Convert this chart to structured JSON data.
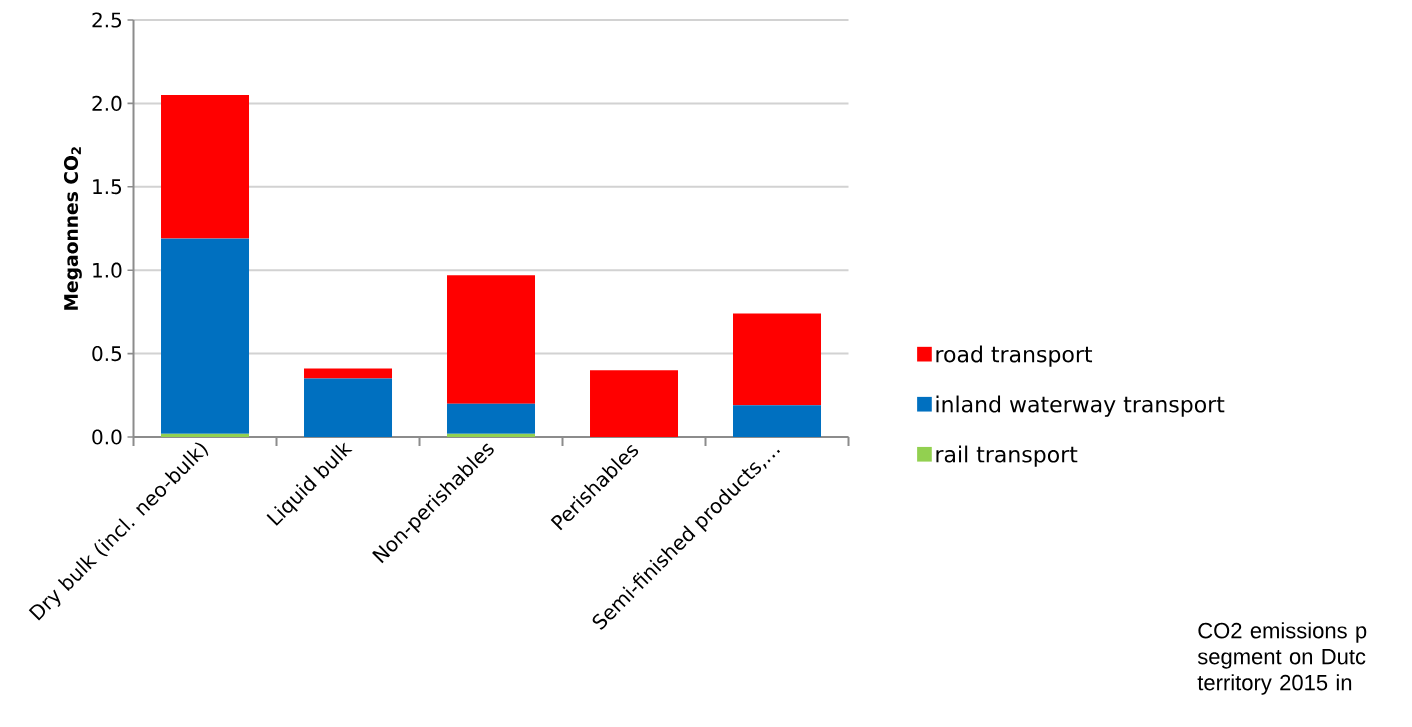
{
  "chart_data": {
    "type": "bar",
    "stacked": true,
    "ylabel": "Megaonnes CO$_{2}$",
    "categories": [
      "Dry bulk (incl. neo-bulk)",
      "Liquid bulk",
      "Non-perishables",
      "Perishables",
      "Semi-finished products,…"
    ],
    "series": [
      {
        "name": "rail transport",
        "color": "#92d050",
        "values": [
          0.02,
          0,
          0.02,
          0,
          0
        ]
      },
      {
        "name": "inland waterway transport",
        "color": "#0070c0",
        "values": [
          1.17,
          0.35,
          0.18,
          0,
          0.19
        ]
      },
      {
        "name": "road transport",
        "color": "#ff0000",
        "values": [
          0.86,
          0.06,
          0.77,
          0.4,
          0.55
        ]
      }
    ],
    "ylim": [
      0,
      2.5
    ],
    "yticks": [
      {
        "value": 0,
        "label": "0.0"
      },
      0.5,
      {
        "value": 1,
        "label": "1.0"
      },
      1.5,
      {
        "value": 2,
        "label": "2.0"
      },
      2.5
    ],
    "grid": "y",
    "legend": "right",
    "annotations": [
      "CO2 emissions p segment on Dutc territory 2015 in"
    ]
  }
}
